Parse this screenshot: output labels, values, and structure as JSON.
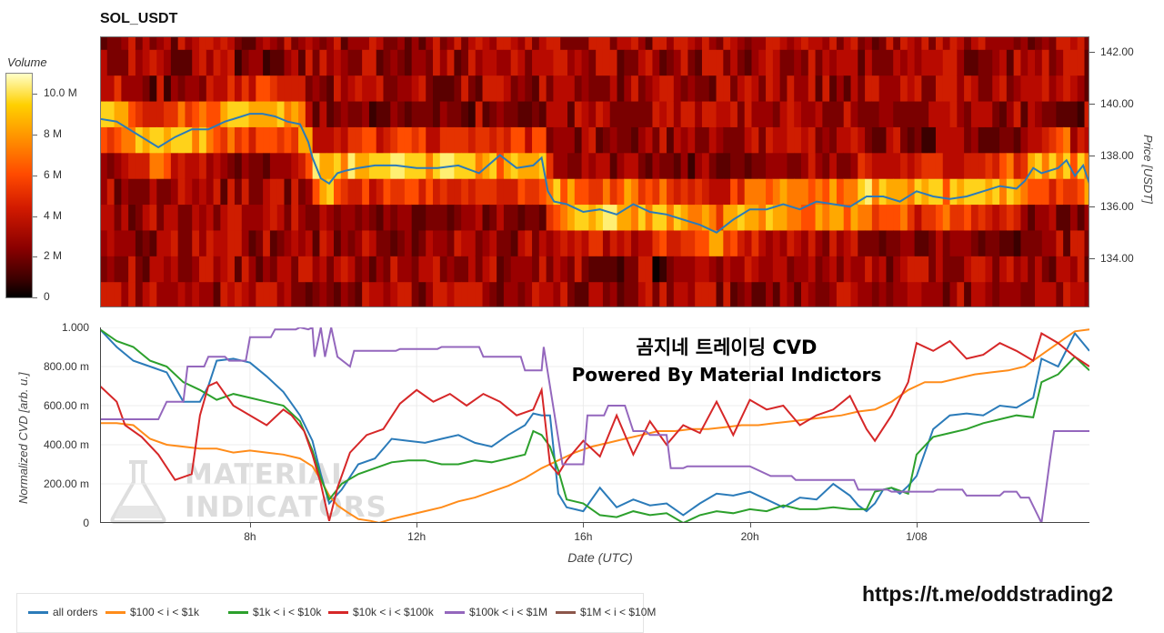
{
  "title": "SOL_USDT",
  "colorbar": {
    "title": "Volume",
    "ticks": [
      "10.0 M",
      "8 M",
      "6 M",
      "4 M",
      "2 M",
      "0"
    ],
    "tick_values": [
      10,
      8,
      6,
      4,
      2,
      0
    ],
    "max": 11.0
  },
  "annotation": {
    "line1": "곰지네 트레이딩 CVD",
    "line2": "Powered By Material Indictors"
  },
  "watermark": {
    "line1": "MATERIAL",
    "line2": "INDICATORS"
  },
  "url_text": "https://t.me/oddstrading2",
  "chart_data": [
    {
      "type": "heatmap",
      "title": "SOL_USDT",
      "y2label": "Price [USDT]",
      "ylim": [
        132.1,
        142.6
      ],
      "yticks": [
        "134.00",
        "136.00",
        "138.00",
        "140.00",
        "142.00"
      ],
      "ytick_values": [
        134,
        136,
        138,
        140,
        142
      ],
      "x_range": [
        4.4,
        28.15
      ],
      "colormap_label": "Volume",
      "price_series": {
        "x": [
          4.4,
          4.8,
          5.2,
          5.5,
          5.8,
          6.2,
          6.6,
          7.0,
          7.4,
          7.8,
          8.0,
          8.3,
          8.6,
          8.9,
          9.2,
          9.4,
          9.5,
          9.7,
          9.9,
          10.1,
          10.3,
          10.6,
          11.0,
          11.5,
          12.0,
          12.5,
          13.0,
          13.5,
          14.0,
          14.4,
          14.8,
          15.0,
          15.15,
          15.3,
          15.6,
          16.0,
          16.4,
          16.8,
          17.2,
          17.6,
          18.0,
          18.4,
          18.8,
          19.2,
          19.6,
          20.0,
          20.4,
          20.8,
          21.2,
          21.6,
          22.0,
          22.4,
          22.8,
          23.2,
          23.6,
          24.0,
          24.4,
          24.8,
          25.2,
          25.6,
          26.0,
          26.4,
          26.6,
          26.8,
          27.0,
          27.4,
          27.6,
          27.8,
          28.0,
          28.15
        ],
        "y": [
          139.4,
          139.3,
          138.9,
          138.6,
          138.3,
          138.7,
          139.0,
          139.0,
          139.3,
          139.5,
          139.6,
          139.6,
          139.5,
          139.3,
          139.2,
          138.5,
          137.9,
          137.1,
          136.9,
          137.3,
          137.4,
          137.5,
          137.6,
          137.6,
          137.5,
          137.5,
          137.6,
          137.3,
          138.0,
          137.5,
          137.6,
          137.9,
          136.6,
          136.2,
          136.1,
          135.8,
          135.9,
          135.7,
          136.1,
          135.8,
          135.7,
          135.5,
          135.3,
          135.0,
          135.5,
          135.9,
          135.9,
          136.1,
          135.9,
          136.2,
          136.1,
          136.0,
          136.4,
          136.4,
          136.2,
          136.6,
          136.4,
          136.3,
          136.4,
          136.6,
          136.8,
          136.7,
          137.0,
          137.5,
          137.3,
          137.5,
          137.8,
          137.2,
          137.6,
          136.9
        ]
      }
    },
    {
      "type": "line",
      "xlabel": "Date (UTC)",
      "ylabel": "Normalized CVD [arb. u.]",
      "x_range": [
        4.4,
        28.15
      ],
      "xticks": [
        "8h",
        "12h",
        "16h",
        "20h",
        "1/08"
      ],
      "xtick_values": [
        8,
        12,
        16,
        20,
        24
      ],
      "ylim": [
        0,
        1.0
      ],
      "yticks": [
        "0",
        "200.00 m",
        "400.00 m",
        "600.00 m",
        "800.00 m",
        "1.000"
      ],
      "ytick_values": [
        0,
        0.2,
        0.4,
        0.6,
        0.8,
        1.0
      ],
      "series": [
        {
          "name": "all orders",
          "color": "#2b7bb9",
          "x": [
            4.4,
            4.8,
            5.2,
            5.6,
            6.0,
            6.4,
            6.8,
            7.0,
            7.2,
            7.6,
            8.0,
            8.4,
            8.8,
            9.2,
            9.5,
            9.7,
            9.9,
            10.2,
            10.6,
            11.0,
            11.4,
            11.8,
            12.2,
            12.6,
            13.0,
            13.4,
            13.8,
            14.2,
            14.6,
            14.8,
            15.0,
            15.2,
            15.4,
            15.6,
            16.0,
            16.4,
            16.8,
            17.2,
            17.6,
            18.0,
            18.4,
            18.8,
            19.2,
            19.6,
            20.0,
            20.4,
            20.8,
            21.2,
            21.6,
            22.0,
            22.4,
            22.6,
            22.8,
            23.0,
            23.2,
            23.4,
            23.6,
            23.8,
            24.0,
            24.4,
            24.8,
            25.2,
            25.6,
            26.0,
            26.4,
            26.8,
            27.0,
            27.4,
            27.8,
            28.15
          ],
          "y": [
            0.99,
            0.9,
            0.83,
            0.8,
            0.77,
            0.62,
            0.62,
            0.7,
            0.83,
            0.84,
            0.82,
            0.75,
            0.67,
            0.55,
            0.42,
            0.25,
            0.1,
            0.17,
            0.3,
            0.33,
            0.43,
            0.42,
            0.41,
            0.43,
            0.45,
            0.41,
            0.39,
            0.45,
            0.5,
            0.56,
            0.55,
            0.55,
            0.15,
            0.08,
            0.06,
            0.18,
            0.08,
            0.12,
            0.09,
            0.1,
            0.04,
            0.1,
            0.15,
            0.14,
            0.16,
            0.12,
            0.08,
            0.13,
            0.12,
            0.2,
            0.14,
            0.09,
            0.06,
            0.1,
            0.17,
            0.18,
            0.15,
            0.19,
            0.24,
            0.48,
            0.55,
            0.56,
            0.55,
            0.6,
            0.59,
            0.64,
            0.84,
            0.8,
            0.97,
            0.88
          ]
        },
        {
          "name": "$100 < i < $1k",
          "color": "#ff8c1a",
          "x": [
            4.4,
            4.8,
            5.2,
            5.6,
            6.0,
            6.4,
            6.8,
            7.2,
            7.6,
            8.0,
            8.4,
            8.8,
            9.2,
            9.5,
            9.7,
            9.9,
            10.1,
            10.3,
            10.6,
            10.9,
            11.1,
            11.4,
            11.8,
            12.2,
            12.6,
            13.0,
            13.4,
            13.8,
            14.2,
            14.6,
            15.0,
            15.4,
            15.8,
            16.2,
            16.6,
            17.0,
            17.4,
            17.8,
            18.2,
            18.6,
            19.0,
            19.4,
            19.8,
            20.2,
            20.6,
            21.0,
            21.4,
            21.8,
            22.2,
            22.6,
            23.0,
            23.4,
            23.8,
            24.2,
            24.6,
            25.0,
            25.4,
            25.8,
            26.2,
            26.6,
            27.0,
            27.4,
            27.8,
            28.15
          ],
          "y": [
            0.51,
            0.51,
            0.5,
            0.43,
            0.4,
            0.39,
            0.38,
            0.38,
            0.36,
            0.37,
            0.36,
            0.35,
            0.33,
            0.29,
            0.22,
            0.14,
            0.09,
            0.06,
            0.02,
            0.01,
            0.0,
            0.02,
            0.04,
            0.06,
            0.08,
            0.11,
            0.13,
            0.16,
            0.19,
            0.23,
            0.28,
            0.32,
            0.36,
            0.39,
            0.41,
            0.43,
            0.45,
            0.47,
            0.47,
            0.48,
            0.48,
            0.49,
            0.5,
            0.5,
            0.51,
            0.52,
            0.53,
            0.54,
            0.55,
            0.57,
            0.58,
            0.62,
            0.68,
            0.72,
            0.72,
            0.74,
            0.76,
            0.77,
            0.78,
            0.8,
            0.86,
            0.92,
            0.98,
            0.99
          ]
        },
        {
          "name": "$1k < i < $10k",
          "color": "#2ca02c",
          "x": [
            4.4,
            4.8,
            5.2,
            5.6,
            6.0,
            6.4,
            6.8,
            7.2,
            7.6,
            8.0,
            8.4,
            8.8,
            9.2,
            9.5,
            9.7,
            9.9,
            10.2,
            10.6,
            11.0,
            11.4,
            11.8,
            12.2,
            12.6,
            13.0,
            13.4,
            13.8,
            14.2,
            14.6,
            14.8,
            15.0,
            15.2,
            15.4,
            15.6,
            16.0,
            16.4,
            16.8,
            17.2,
            17.6,
            18.0,
            18.4,
            18.8,
            19.2,
            19.6,
            20.0,
            20.4,
            20.8,
            21.2,
            21.6,
            22.0,
            22.4,
            22.6,
            22.8,
            23.0,
            23.4,
            23.8,
            24.0,
            24.4,
            24.8,
            25.2,
            25.6,
            26.0,
            26.4,
            26.8,
            27.0,
            27.4,
            27.8,
            28.15
          ],
          "y": [
            0.99,
            0.93,
            0.9,
            0.83,
            0.8,
            0.72,
            0.68,
            0.63,
            0.66,
            0.64,
            0.62,
            0.6,
            0.52,
            0.37,
            0.23,
            0.12,
            0.2,
            0.25,
            0.28,
            0.31,
            0.32,
            0.32,
            0.3,
            0.3,
            0.32,
            0.31,
            0.33,
            0.35,
            0.47,
            0.45,
            0.39,
            0.27,
            0.12,
            0.1,
            0.04,
            0.03,
            0.06,
            0.04,
            0.05,
            0.0,
            0.04,
            0.06,
            0.05,
            0.07,
            0.06,
            0.09,
            0.07,
            0.07,
            0.08,
            0.07,
            0.07,
            0.07,
            0.16,
            0.18,
            0.15,
            0.35,
            0.44,
            0.46,
            0.48,
            0.51,
            0.53,
            0.55,
            0.54,
            0.72,
            0.76,
            0.85,
            0.78
          ]
        },
        {
          "name": "$10k < i < $100k",
          "color": "#d62728",
          "x": [
            4.4,
            4.8,
            5.0,
            5.4,
            5.8,
            6.2,
            6.6,
            6.8,
            7.0,
            7.2,
            7.6,
            8.0,
            8.4,
            8.8,
            9.0,
            9.3,
            9.5,
            9.7,
            9.9,
            10.1,
            10.4,
            10.8,
            11.2,
            11.6,
            12.0,
            12.4,
            12.8,
            13.2,
            13.6,
            14.0,
            14.4,
            14.8,
            15.0,
            15.2,
            15.4,
            15.6,
            16.0,
            16.4,
            16.8,
            17.2,
            17.6,
            18.0,
            18.4,
            18.8,
            19.2,
            19.6,
            20.0,
            20.4,
            20.8,
            21.2,
            21.6,
            22.0,
            22.4,
            22.8,
            23.0,
            23.4,
            23.8,
            24.0,
            24.4,
            24.8,
            25.2,
            25.6,
            26.0,
            26.4,
            26.8,
            27.0,
            27.4,
            27.8,
            28.15
          ],
          "y": [
            0.7,
            0.62,
            0.5,
            0.44,
            0.35,
            0.22,
            0.25,
            0.55,
            0.7,
            0.72,
            0.6,
            0.55,
            0.5,
            0.58,
            0.55,
            0.47,
            0.35,
            0.2,
            0.01,
            0.18,
            0.36,
            0.45,
            0.48,
            0.61,
            0.68,
            0.62,
            0.66,
            0.6,
            0.66,
            0.62,
            0.55,
            0.58,
            0.68,
            0.3,
            0.25,
            0.32,
            0.42,
            0.34,
            0.55,
            0.35,
            0.52,
            0.4,
            0.5,
            0.46,
            0.62,
            0.45,
            0.63,
            0.58,
            0.6,
            0.5,
            0.55,
            0.58,
            0.65,
            0.48,
            0.42,
            0.55,
            0.72,
            0.92,
            0.88,
            0.93,
            0.84,
            0.86,
            0.92,
            0.88,
            0.83,
            0.97,
            0.92,
            0.85,
            0.8
          ]
        },
        {
          "name": "$100k < i < $1M",
          "color": "#9467bd",
          "x": [
            4.4,
            5.8,
            6.0,
            6.4,
            6.5,
            6.9,
            7.0,
            7.4,
            7.5,
            7.9,
            8.0,
            8.5,
            8.6,
            9.1,
            9.2,
            9.4,
            9.5,
            9.55,
            9.7,
            9.8,
            9.95,
            10.1,
            10.4,
            10.5,
            11.5,
            11.6,
            12.5,
            12.6,
            13.5,
            13.6,
            14.5,
            14.6,
            15.0,
            15.05,
            15.5,
            16.0,
            16.1,
            16.5,
            16.6,
            17.0,
            17.2,
            17.5,
            17.6,
            18.0,
            18.1,
            18.4,
            18.5,
            19.5,
            19.6,
            20.0,
            20.5,
            21.0,
            21.1,
            22.5,
            22.6,
            23.3,
            23.4,
            23.7,
            24.4,
            24.5,
            25.1,
            25.2,
            26.0,
            26.1,
            26.4,
            26.5,
            26.7,
            27.0,
            27.2,
            27.3,
            28.15
          ],
          "y": [
            0.53,
            0.53,
            0.62,
            0.62,
            0.8,
            0.8,
            0.85,
            0.85,
            0.83,
            0.83,
            0.95,
            0.95,
            0.99,
            0.99,
            1.0,
            0.99,
            1.0,
            0.85,
            1.0,
            0.85,
            1.0,
            0.85,
            0.8,
            0.88,
            0.88,
            0.89,
            0.89,
            0.9,
            0.9,
            0.85,
            0.85,
            0.78,
            0.78,
            0.9,
            0.3,
            0.3,
            0.55,
            0.55,
            0.6,
            0.6,
            0.47,
            0.47,
            0.45,
            0.45,
            0.28,
            0.28,
            0.29,
            0.29,
            0.29,
            0.29,
            0.24,
            0.24,
            0.22,
            0.22,
            0.17,
            0.17,
            0.16,
            0.16,
            0.16,
            0.17,
            0.17,
            0.14,
            0.14,
            0.16,
            0.16,
            0.13,
            0.13,
            0.0,
            0.32,
            0.47,
            0.47
          ]
        },
        {
          "name": "$1M < i < $10M",
          "color": "#8c564b",
          "x": [],
          "y": []
        }
      ]
    }
  ]
}
